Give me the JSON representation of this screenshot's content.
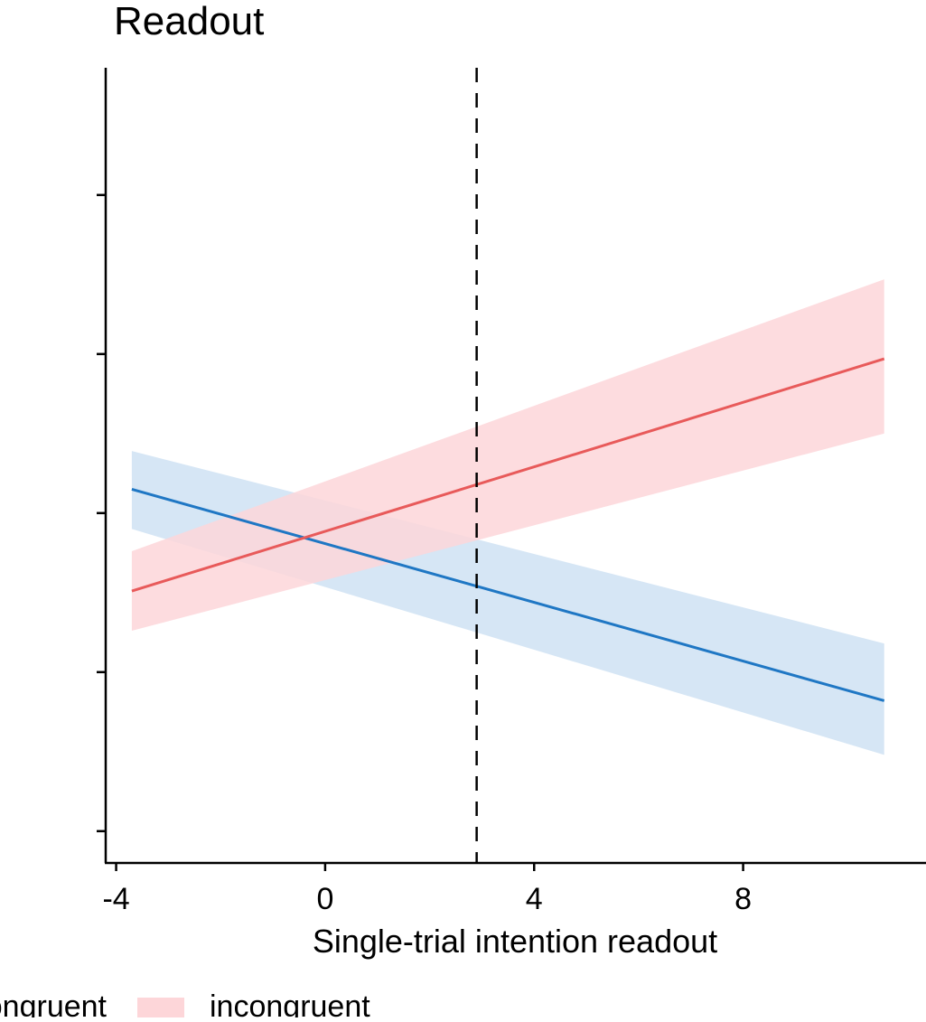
{
  "chart_data": {
    "type": "line",
    "title": "Readout",
    "xlabel": "Single-trial intention readout",
    "ylabel": "",
    "xlim": [
      -4.2,
      11.5
    ],
    "ylim": [
      0,
      5
    ],
    "x_ticks": [
      -4,
      0,
      4,
      8
    ],
    "x_tick_labels": [
      "-4",
      "0",
      "4",
      "8"
    ],
    "y_ticks": [
      0.2,
      1.2,
      2.2,
      3.2,
      4.2
    ],
    "y_tick_labels": [
      "",
      "",
      "",
      "",
      ""
    ],
    "reference_line": {
      "x": 2.9,
      "style": "dashed"
    },
    "series": [
      {
        "name": "congruent",
        "color": "#1f77c4",
        "band_color": "#cfe2f3",
        "x": [
          -3.7,
          10.7
        ],
        "y": [
          2.35,
          1.02
        ],
        "ci_lower": [
          2.1,
          0.68
        ],
        "ci_upper": [
          2.59,
          1.38
        ]
      },
      {
        "name": "incongruent",
        "color": "#e85a5a",
        "band_color": "#fdd6d9",
        "x": [
          -3.7,
          10.7
        ],
        "y": [
          1.71,
          3.17
        ],
        "ci_lower": [
          1.46,
          2.7
        ],
        "ci_upper": [
          1.96,
          3.67
        ]
      }
    ],
    "legend": {
      "position": "bottom",
      "entries": [
        "congruent",
        "incongruent"
      ]
    },
    "grid": false
  }
}
